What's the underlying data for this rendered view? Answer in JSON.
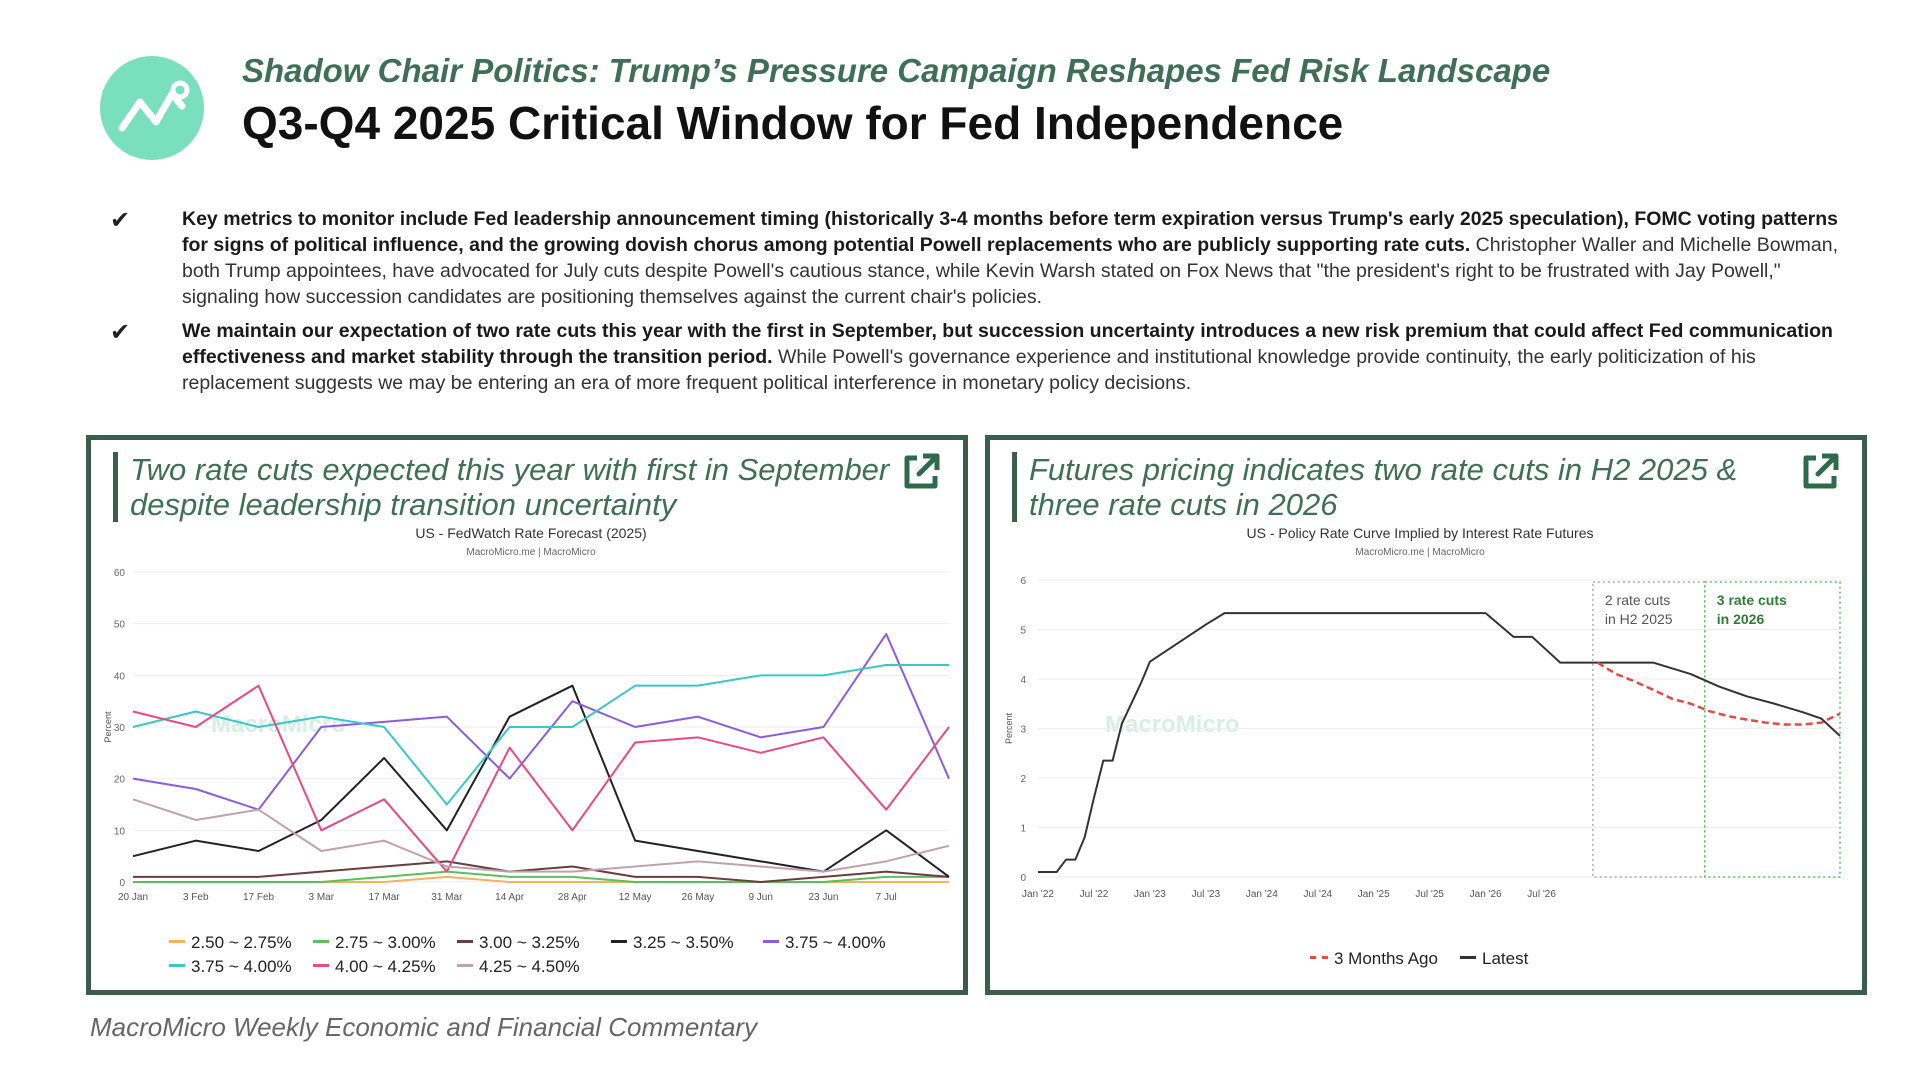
{
  "header": {
    "subtitle": "Shadow Chair Politics: Trump’s Pressure Campaign Reshapes Fed Risk Landscape",
    "title": "Q3-Q4 2025 Critical Window for Fed Independence",
    "logo_icon": "chart-line-icon"
  },
  "bullets": [
    {
      "bold": "Key metrics to monitor include Fed leadership announcement timing (historically 3-4 months before term expiration versus Trump's early 2025 speculation), FOMC voting patterns for signs of political influence, and the growing dovish chorus among potential Powell replacements who are publicly supporting rate cuts.",
      "text": " Christopher Waller and Michelle Bowman, both Trump appointees, have advocated for July cuts despite Powell's cautious stance, while Kevin Warsh stated on Fox News that \"the president's right to be frustrated with Jay Powell,\" signaling how succession candidates are positioning themselves against the current chair's policies."
    },
    {
      "bold": "We maintain our expectation of two rate cuts this year with the first in September, but succession uncertainty introduces a new risk premium that could affect Fed communication effectiveness and market stability through the transition period.",
      "text": " While Powell's governance experience and institutional knowledge provide continuity, the early politicization of his replacement suggests we may be entering an era of more frequent political interference in monetary policy decisions."
    }
  ],
  "panels": {
    "left": {
      "heading_line1": "Two rate cuts expected this year with first in September",
      "heading_line2": "despite leadership transition uncertainty"
    },
    "right": {
      "heading_line1": "Futures pricing indicates two rate cuts in H2 2025 &",
      "heading_line2": "three rate cuts in 2026"
    }
  },
  "watermark": "MacroMicro",
  "footer": "MacroMicro Weekly Economic and Financial Commentary",
  "chart_data": [
    {
      "type": "line",
      "title": "US - FedWatch Rate Forecast (2025)",
      "subtitle": "MacroMicro.me | MacroMicro",
      "ylabel": "Percent",
      "ylim": [
        0,
        60
      ],
      "yticks": [
        0,
        10,
        20,
        30,
        40,
        50,
        60
      ],
      "xticks": [
        "20 Jan",
        "3 Feb",
        "17 Feb",
        "3 Mar",
        "17 Mar",
        "31 Mar",
        "14 Apr",
        "28 Apr",
        "12 May",
        "26 May",
        "9 Jun",
        "23 Jun",
        "7 Jul"
      ],
      "x_week_index": [
        0,
        2,
        4,
        6,
        8,
        10,
        12,
        14,
        16,
        18,
        20,
        22,
        24,
        26
      ],
      "series": [
        {
          "name": "2.50 ~ 2.75%",
          "color": "#f2b35a",
          "values": [
            0,
            0,
            0,
            0,
            0,
            1,
            0,
            0,
            0,
            0,
            0,
            0,
            0,
            0
          ]
        },
        {
          "name": "2.75 ~ 3.00%",
          "color": "#5cbf5a",
          "values": [
            0,
            0,
            0,
            0,
            1,
            2,
            1,
            1,
            0,
            0,
            0,
            0,
            1,
            1
          ]
        },
        {
          "name": "3.00 ~ 3.25%",
          "color": "#6b3e3e",
          "values": [
            1,
            1,
            1,
            2,
            3,
            4,
            2,
            3,
            1,
            1,
            0,
            1,
            2,
            1
          ]
        },
        {
          "name": "3.25 ~ 3.50%",
          "color": "#222222",
          "values": [
            5,
            8,
            6,
            12,
            24,
            10,
            32,
            38,
            8,
            6,
            4,
            2,
            10,
            1
          ]
        },
        {
          "name": "3.75 ~ 4.00%",
          "color": "#8b5be0",
          "values": [
            20,
            18,
            14,
            30,
            31,
            32,
            20,
            35,
            30,
            32,
            28,
            30,
            48,
            20
          ]
        },
        {
          "name": "3.75 ~ 4.00%",
          "color": "#3bc7c4",
          "values": [
            30,
            33,
            30,
            32,
            30,
            15,
            30,
            30,
            38,
            38,
            40,
            40,
            42,
            42
          ]
        },
        {
          "name": "4.00 ~ 4.25%",
          "color": "#e84a82",
          "values": [
            33,
            30,
            38,
            10,
            16,
            2,
            26,
            10,
            27,
            28,
            25,
            28,
            14,
            30
          ]
        },
        {
          "name": "4.25 ~ 4.50%",
          "color": "#bfa2ad",
          "values": [
            16,
            12,
            14,
            6,
            8,
            3,
            2,
            2,
            3,
            4,
            3,
            2,
            4,
            7
          ]
        }
      ]
    },
    {
      "type": "line",
      "title": "US - Policy Rate Curve Implied by Interest Rate Futures",
      "subtitle": "MacroMicro.me | MacroMicro",
      "ylabel": "Percent",
      "ylim": [
        0,
        6
      ],
      "yticks": [
        0,
        1,
        2,
        3,
        4,
        5,
        6
      ],
      "xticks": [
        "Jan '22",
        "Jul '22",
        "Jan '23",
        "Jul '23",
        "Jan '24",
        "Jul '24",
        "Jan '25",
        "Jul '25",
        "Jan '26",
        "Jul '26"
      ],
      "annotations": [
        {
          "label_line1": "2 rate cuts",
          "label_line2": "in H2 2025",
          "x_start": "Jun '25",
          "x_end": "Jan '26"
        },
        {
          "label_line1": "3 rate cuts",
          "label_line2": "in 2026",
          "x_start": "Jan '26",
          "x_end": "Dec '26"
        }
      ],
      "series": [
        {
          "name": "Latest",
          "color": "#333333",
          "style": "solid",
          "x_month": [
            0,
            2,
            3,
            4,
            5,
            6,
            7,
            8,
            9,
            11,
            12,
            14,
            16,
            18,
            20,
            23,
            24,
            30,
            36,
            42,
            48,
            51,
            53,
            56,
            60,
            66,
            70,
            73,
            76,
            79,
            82,
            84,
            86
          ],
          "values": [
            0.1,
            0.1,
            0.35,
            0.35,
            0.8,
            1.6,
            2.35,
            2.35,
            3.1,
            3.9,
            4.35,
            4.6,
            4.85,
            5.1,
            5.33,
            5.33,
            5.33,
            5.33,
            5.33,
            5.33,
            5.33,
            4.85,
            4.85,
            4.33,
            4.33,
            4.33,
            4.1,
            3.85,
            3.65,
            3.5,
            3.33,
            3.2,
            2.85
          ]
        },
        {
          "name": "3 Months Ago",
          "color": "#e34a42",
          "style": "dashed",
          "x_month": [
            60,
            62,
            64,
            66,
            68,
            70,
            72,
            74,
            76,
            78,
            80,
            82,
            84,
            86
          ],
          "values": [
            4.33,
            4.1,
            3.95,
            3.78,
            3.6,
            3.5,
            3.35,
            3.25,
            3.18,
            3.12,
            3.08,
            3.08,
            3.12,
            3.3
          ]
        }
      ]
    }
  ]
}
